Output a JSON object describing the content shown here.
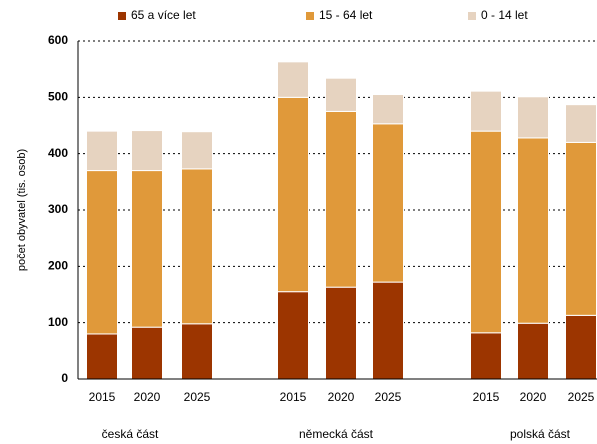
{
  "chart_data": {
    "type": "stacked_bar",
    "y_label": "počet obyvatel (tis. osob)",
    "groups": [
      "česká část",
      "německá část",
      "polská část"
    ],
    "categories": [
      "2015",
      "2020",
      "2025",
      "2015",
      "2020",
      "2025",
      "2015",
      "2020",
      "2025"
    ],
    "series": [
      {
        "name": "65 a více let",
        "color": "#9c3500",
        "values": [
          80,
          92,
          98,
          155,
          163,
          172,
          82,
          99,
          113
        ]
      },
      {
        "name": "15 - 64 let",
        "color": "#e0993a",
        "values": [
          290,
          278,
          275,
          345,
          312,
          281,
          358,
          329,
          307
        ]
      },
      {
        "name": "0 - 14 let",
        "color": "#e6d3c0",
        "values": [
          70,
          71,
          66,
          63,
          59,
          52,
          71,
          73,
          67
        ]
      }
    ],
    "ylim": [
      0,
      600
    ],
    "yticks": [
      0,
      100,
      200,
      300,
      400,
      500,
      600
    ],
    "grid": true,
    "legend": "top"
  }
}
